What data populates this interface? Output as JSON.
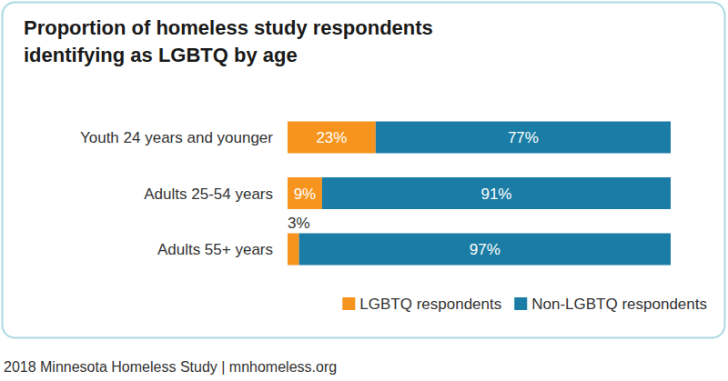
{
  "chart_data": {
    "type": "bar",
    "orientation": "horizontal",
    "stacked": true,
    "title": "Proportion of homeless study respondents identifying as LGBTQ by age",
    "categories": [
      "Youth 24 years and younger",
      "Adults 25-54 years",
      "Adults 55+ years"
    ],
    "series": [
      {
        "name": "LGBTQ respondents",
        "color": "#F7941D",
        "values": [
          23,
          9,
          3
        ],
        "value_labels": [
          "23%",
          "9%",
          "3%"
        ]
      },
      {
        "name": "Non-LGBTQ respondents",
        "color": "#1B7DA5",
        "values": [
          77,
          91,
          97
        ],
        "value_labels": [
          "77%",
          "91%",
          "97%"
        ]
      }
    ],
    "xlim": [
      0,
      100
    ],
    "data_labels": true,
    "tick_labels": "y",
    "grid": false,
    "legend": "bottom",
    "source": "2018 Minnesota Homeless Study | mnhomeless.org"
  }
}
